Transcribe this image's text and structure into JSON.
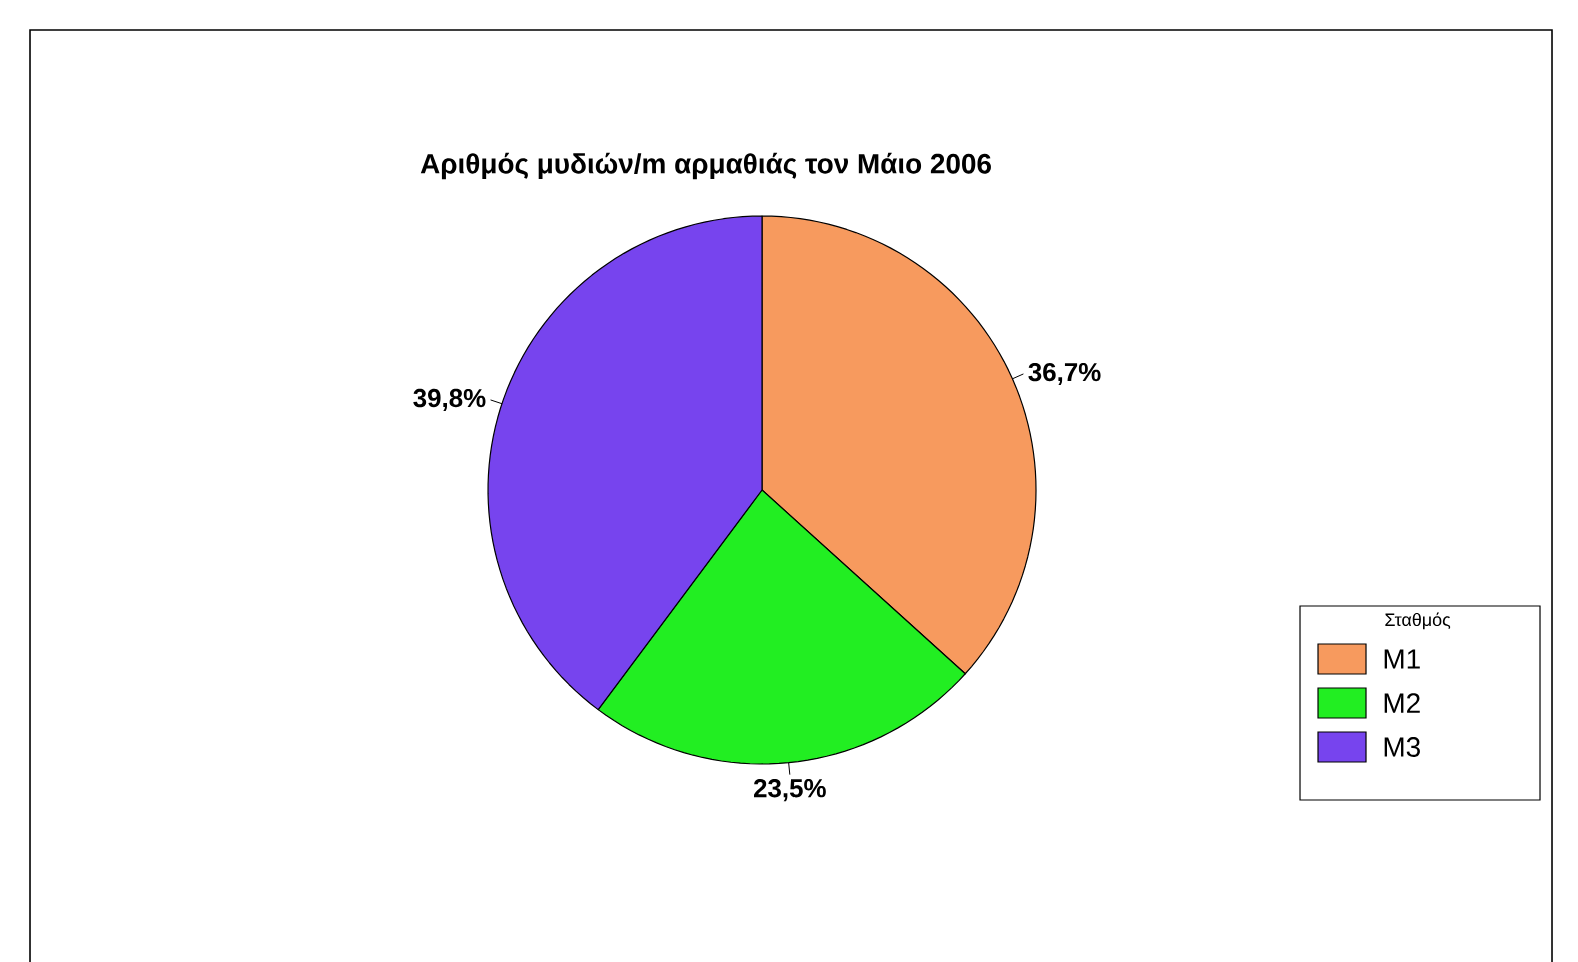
{
  "chart_data": {
    "type": "pie",
    "title": "Αριθμός μυδιών/m αρμαθιάς τον Μάιο 2006",
    "legend_title": "Σταθμός",
    "categories": [
      "M1",
      "M2",
      "M3"
    ],
    "values": [
      36.7,
      23.5,
      39.8
    ],
    "value_labels": [
      "36,7%",
      "23,5%",
      "39,8%"
    ],
    "colors": [
      "#f79a5e",
      "#22ee22",
      "#7744ee"
    ],
    "legend": "right"
  }
}
